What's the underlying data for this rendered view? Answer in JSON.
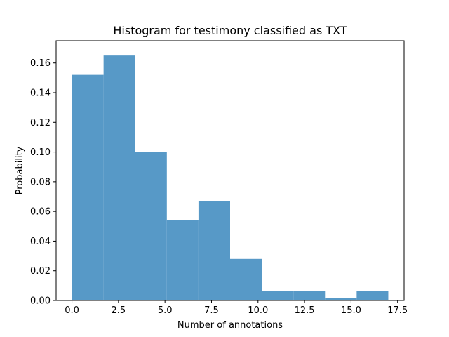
{
  "chart_data": {
    "type": "bar",
    "title": "Histogram for testimony classified as TXT",
    "xlabel": "Number of annotations",
    "ylabel": "Probability",
    "xlim": [
      -0.85,
      17.85
    ],
    "ylim": [
      0,
      0.175
    ],
    "xticks": [
      0.0,
      2.5,
      5.0,
      7.5,
      10.0,
      12.5,
      15.0,
      17.5
    ],
    "xtick_labels": [
      "0.0",
      "2.5",
      "5.0",
      "7.5",
      "10.0",
      "12.5",
      "15.0",
      "17.5"
    ],
    "yticks": [
      0.0,
      0.02,
      0.04,
      0.06,
      0.08,
      0.1,
      0.12,
      0.14,
      0.16
    ],
    "ytick_labels": [
      "0.00",
      "0.02",
      "0.04",
      "0.06",
      "0.08",
      "0.10",
      "0.12",
      "0.14",
      "0.16"
    ],
    "bin_edges": [
      0.0,
      1.7,
      3.4,
      5.1,
      6.8,
      8.5,
      10.2,
      11.9,
      13.6,
      15.3,
      17.0
    ],
    "values": [
      0.152,
      0.165,
      0.1,
      0.054,
      0.067,
      0.028,
      0.0065,
      0.0065,
      0.0018,
      0.0065
    ],
    "color": "#5799c7",
    "grid": false
  }
}
